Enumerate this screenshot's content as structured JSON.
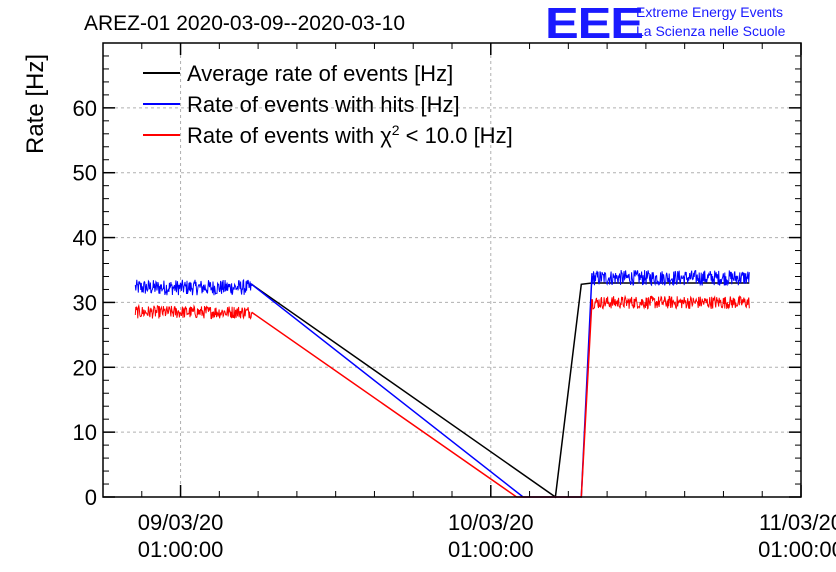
{
  "header": {
    "title": "AREZ-01 2020-03-09--2020-03-10",
    "logo_letters": "EEE",
    "logo_line1": "Extreme Energy Events",
    "logo_line2": "La Scienza nelle Scuole"
  },
  "axes": {
    "ylabel": "Rate [Hz]",
    "y_ticks": [
      "0",
      "10",
      "20",
      "30",
      "40",
      "50",
      "60"
    ],
    "x_ticks": [
      {
        "date": "09/03/20",
        "time": "01:00:00"
      },
      {
        "date": "10/03/20",
        "time": "01:00:00"
      },
      {
        "date": "11/03/20",
        "time": "01:00:00"
      }
    ]
  },
  "legend": [
    {
      "label": "Average rate of events [Hz]",
      "color": "#000000"
    },
    {
      "label": "Rate of events with hits [Hz]",
      "color": "#0000ff"
    },
    {
      "label_prefix": "Rate of events with χ",
      "label_sup": "2",
      "label_suffix": " < 10.0 [Hz]",
      "color": "#ff0000"
    }
  ],
  "chart_data": {
    "type": "line",
    "title": "AREZ-01 2020-03-09--2020-03-10",
    "xlabel": "",
    "ylabel": "Rate [Hz]",
    "xlim": [
      "2020-03-08 19:00",
      "2020-03-11 01:00"
    ],
    "ylim": [
      0,
      70
    ],
    "grid": true,
    "legend_position": "top-left",
    "x_ticks": [
      "09/03/20 01:00:00",
      "10/03/20 01:00:00",
      "11/03/20 01:00:00"
    ],
    "series": [
      {
        "name": "Average rate of events [Hz]",
        "color": "#000000",
        "x": [
          "2020-03-09 06:30",
          "2020-03-10 06:00",
          "2020-03-10 08:00",
          "2020-03-10 08:50",
          "2020-03-10 21:00"
        ],
        "y": [
          32.8,
          0,
          32.8,
          33.0,
          33.0
        ]
      },
      {
        "name": "Rate of events with hits [Hz]",
        "color": "#0000ff",
        "segments": [
          {
            "x_start": "2020-03-08 21:30",
            "x_end": "2020-03-09 06:30",
            "mean": 32.3,
            "noise": 1.2
          },
          {
            "x_start": "2020-03-10 08:50",
            "x_end": "2020-03-10 21:00",
            "mean": 33.8,
            "noise": 1.2
          }
        ],
        "x": [
          "2020-03-09 06:30",
          "2020-03-10 03:30",
          "2020-03-10 07:00",
          "2020-03-10 08:00",
          "2020-03-10 08:50"
        ],
        "y": [
          32.8,
          0,
          0,
          0,
          34.5
        ]
      },
      {
        "name": "Rate of events with χ2 < 10.0 [Hz]",
        "color": "#ff0000",
        "segments": [
          {
            "x_start": "2020-03-08 21:30",
            "x_end": "2020-03-09 06:30",
            "mean": 28.5,
            "noise": 1.0
          },
          {
            "x_start": "2020-03-10 08:50",
            "x_end": "2020-03-10 21:00",
            "mean": 30.0,
            "noise": 1.0
          }
        ],
        "x": [
          "2020-03-09 06:30",
          "2020-03-10 03:00",
          "2020-03-10 07:00",
          "2020-03-10 08:00",
          "2020-03-10 08:50"
        ],
        "y": [
          28.5,
          0,
          0,
          0,
          30.5
        ]
      }
    ]
  }
}
